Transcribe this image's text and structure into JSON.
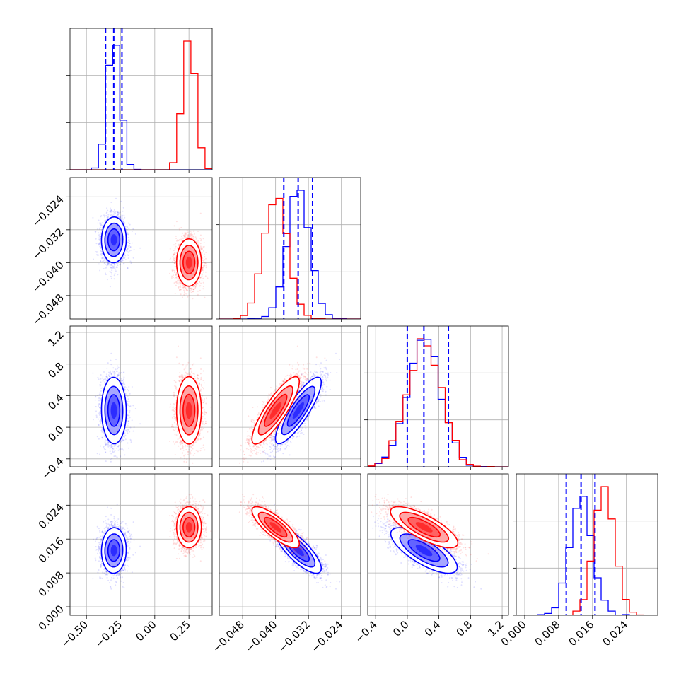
{
  "chart_data": {
    "type": "corner",
    "grid": true,
    "colors": {
      "series_a": "#0000ff",
      "series_b": "#ff0000"
    },
    "quantile_lines": {
      "color": "#0000ff",
      "style": "dashed",
      "applies_to": "series_a"
    },
    "params": [
      {
        "range": [
          -0.62,
          0.42
        ],
        "ticks": [
          -0.5,
          -0.25,
          0.0,
          0.25
        ],
        "tick_labels": [
          "−0.50",
          "−0.25",
          "0.00",
          "0.25"
        ]
      },
      {
        "range": [
          -0.0537,
          -0.0193
        ],
        "ticks": [
          -0.048,
          -0.04,
          -0.032,
          -0.024
        ],
        "tick_labels": [
          "−0.048",
          "−0.040",
          "−0.032",
          "−0.024"
        ]
      },
      {
        "range": [
          -0.5,
          1.28
        ],
        "ticks": [
          -0.4,
          0.0,
          0.4,
          0.8,
          1.2
        ],
        "tick_labels": [
          "−0.4",
          "0.0",
          "0.4",
          "0.8",
          "1.2"
        ]
      },
      {
        "range": [
          -0.002,
          0.0314
        ],
        "ticks": [
          0.0,
          0.008,
          0.016,
          0.024
        ],
        "tick_labels": [
          "0.000",
          "0.008",
          "0.016",
          "0.024"
        ]
      }
    ],
    "series": [
      {
        "color": "#0000ff",
        "mean": [
          -0.3,
          -0.0345,
          0.21,
          0.0133
        ],
        "std": [
          0.045,
          0.0028,
          0.21,
          0.0027
        ],
        "corr": [
          [
            1,
            0.05,
            0.0,
            0.0
          ],
          [
            0.05,
            1,
            0.85,
            -0.8
          ],
          [
            0.0,
            0.85,
            1,
            -0.75
          ],
          [
            0.0,
            -0.8,
            -0.75,
            1
          ]
        ],
        "quantiles": [
          [
            -0.36,
            -0.3,
            -0.24
          ],
          [
            -0.038,
            -0.0345,
            -0.031
          ],
          [
            0.0,
            0.21,
            0.52
          ],
          [
            0.0098,
            0.0133,
            0.0166
          ]
        ]
      },
      {
        "color": "#ff0000",
        "mean": [
          0.25,
          -0.04,
          0.21,
          0.0188
        ],
        "std": [
          0.045,
          0.0028,
          0.21,
          0.0024
        ],
        "corr": [
          [
            1,
            0.0,
            0.0,
            0.0
          ],
          [
            0.0,
            1,
            0.85,
            -0.8
          ],
          [
            0.0,
            0.85,
            1,
            -0.75
          ],
          [
            0.0,
            -0.8,
            -0.75,
            1
          ]
        ]
      }
    ]
  }
}
